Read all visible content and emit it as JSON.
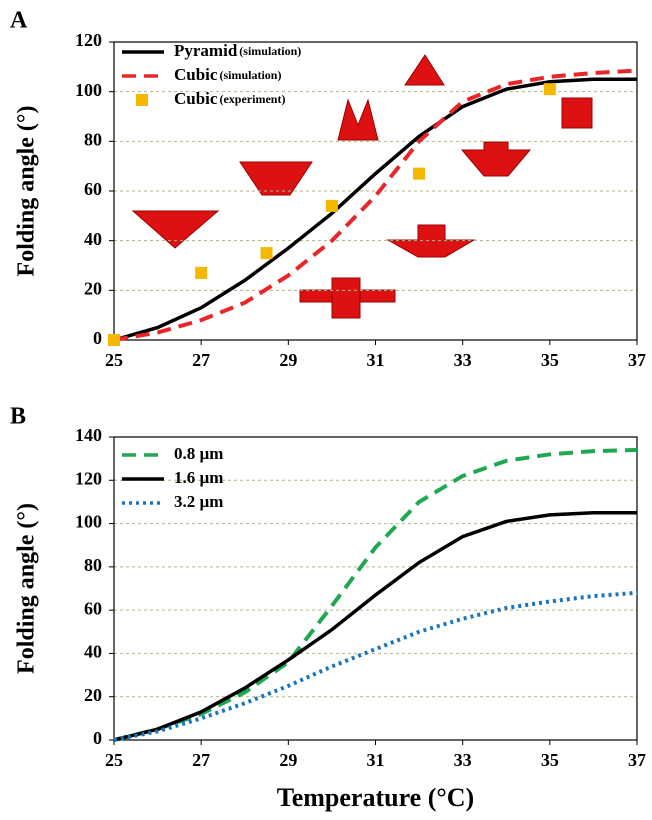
{
  "chart_data": [
    {
      "type": "line",
      "panel_label": "A",
      "y_label": "Folding angle (°)",
      "xlim": [
        25,
        37
      ],
      "xticks": [
        25,
        27,
        29,
        31,
        33,
        35,
        37
      ],
      "ylim": [
        0,
        120
      ],
      "yticks": [
        0,
        20,
        40,
        60,
        80,
        100,
        120
      ],
      "grid": true,
      "series": [
        {
          "name": "Pyramid",
          "note": "(simulation)",
          "color": "#000000",
          "style": "solid",
          "x": [
            25,
            26,
            27,
            28,
            29,
            30,
            31,
            32,
            33,
            34,
            35,
            36,
            37
          ],
          "values": [
            0,
            5,
            13,
            24,
            37,
            51,
            67,
            82,
            94,
            101,
            104,
            105,
            105
          ]
        },
        {
          "name": "Cubic",
          "note": "(simulation)",
          "color": "#e8262a",
          "style": "dashed",
          "x": [
            25,
            26,
            27,
            28,
            29,
            30,
            31,
            32,
            33,
            34,
            35,
            36,
            37
          ],
          "values": [
            0,
            3,
            8,
            15,
            26,
            40,
            58,
            80,
            96,
            103,
            106,
            107.5,
            108.5
          ]
        },
        {
          "name": "Cubic",
          "note": "(experiment)",
          "color": "#f5b800",
          "style": "markers",
          "x": [
            25,
            27,
            28.5,
            30,
            32,
            35
          ],
          "values": [
            0,
            27,
            35,
            54,
            67,
            101
          ]
        }
      ]
    },
    {
      "type": "line",
      "panel_label": "B",
      "y_label": "Folding angle (°)",
      "x_label": "Temperature (°C)",
      "xlim": [
        25,
        37
      ],
      "xticks": [
        25,
        27,
        29,
        31,
        33,
        35,
        37
      ],
      "ylim": [
        0,
        140
      ],
      "yticks": [
        0,
        20,
        40,
        60,
        80,
        100,
        120,
        140
      ],
      "grid": true,
      "series": [
        {
          "name": "0.8 µm",
          "color": "#1fa84f",
          "style": "dashed",
          "x": [
            25,
            26,
            27,
            28,
            29,
            30,
            31,
            32,
            33,
            34,
            35,
            36,
            37
          ],
          "values": [
            0,
            5,
            12,
            22,
            36,
            62,
            89,
            110,
            122,
            129,
            132,
            133.5,
            134
          ]
        },
        {
          "name": "1.6 µm",
          "color": "#000000",
          "style": "solid",
          "x": [
            25,
            26,
            27,
            28,
            29,
            30,
            31,
            32,
            33,
            34,
            35,
            36,
            37
          ],
          "values": [
            0,
            5,
            13,
            24,
            37,
            51,
            67,
            82,
            94,
            101,
            104,
            105,
            105
          ]
        },
        {
          "name": "3.2 µm",
          "color": "#1b75bc",
          "style": "dotted",
          "x": [
            25,
            26,
            27,
            28,
            29,
            30,
            31,
            32,
            33,
            34,
            35,
            36,
            37
          ],
          "values": [
            0,
            4,
            10,
            17,
            25,
            34,
            42,
            50,
            56,
            61,
            64,
            66.5,
            68
          ]
        }
      ]
    }
  ]
}
